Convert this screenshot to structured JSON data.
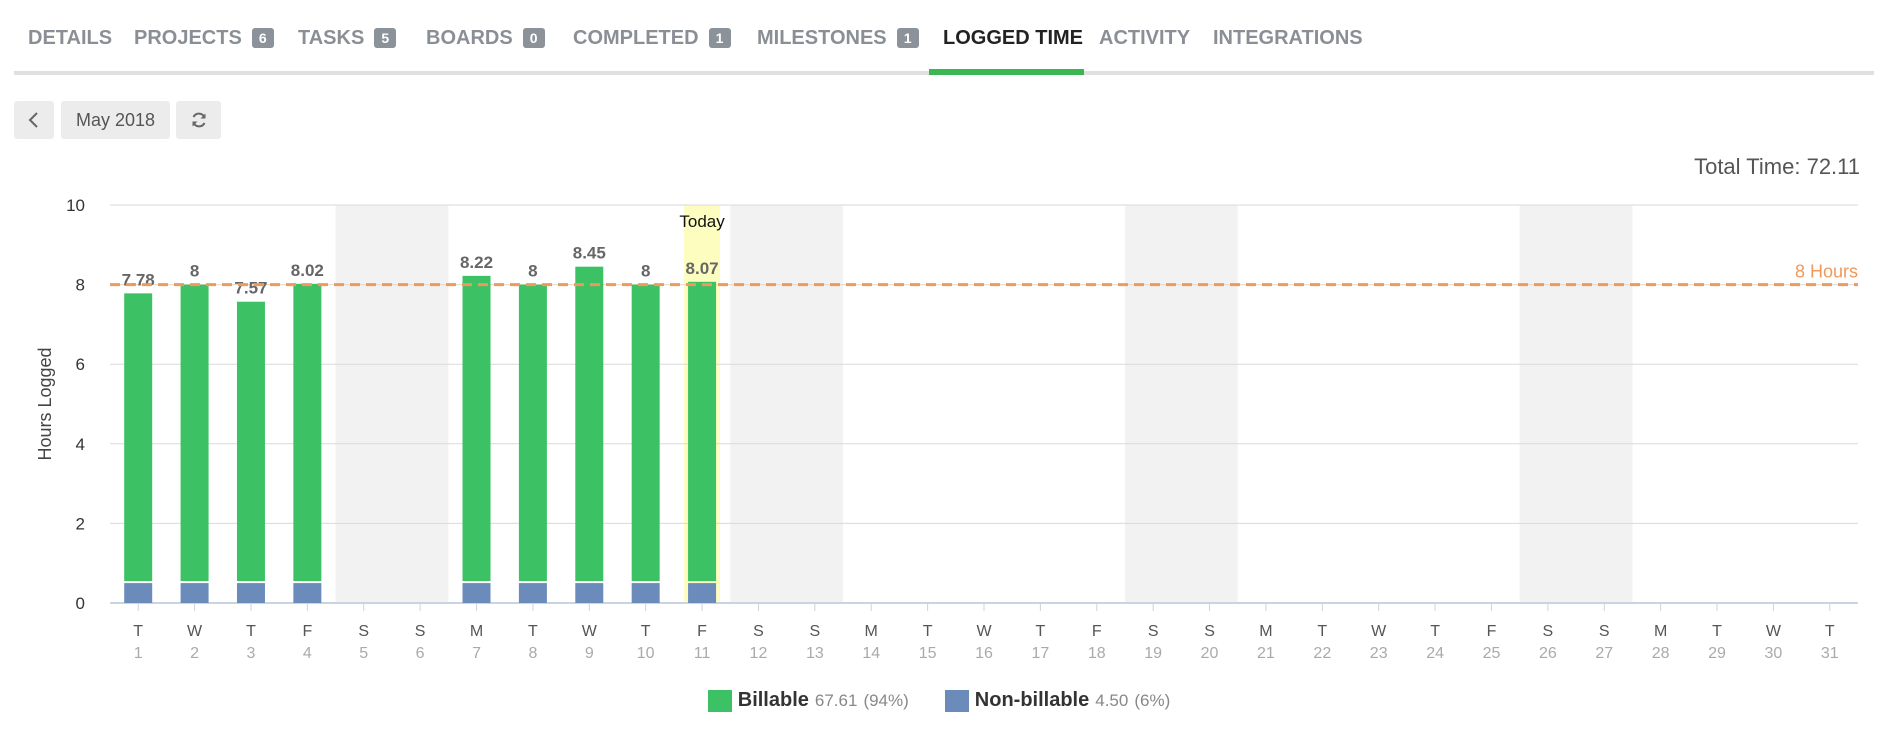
{
  "tabs": [
    {
      "label": "DETAILS",
      "badge": null
    },
    {
      "label": "PROJECTS",
      "badge": "6"
    },
    {
      "label": "TASKS",
      "badge": "5"
    },
    {
      "label": "BOARDS",
      "badge": "0"
    },
    {
      "label": "COMPLETED",
      "badge": "1"
    },
    {
      "label": "MILESTONES",
      "badge": "1"
    },
    {
      "label": "LOGGED TIME",
      "badge": null,
      "active": true
    },
    {
      "label": "ACTIVITY",
      "badge": null
    },
    {
      "label": "INTEGRATIONS",
      "badge": null
    }
  ],
  "toolbar": {
    "prev_icon": "chevron-left-icon",
    "month": "May 2018",
    "refresh_icon": "refresh-icon"
  },
  "total_time": {
    "label": "Total Time:",
    "value": "72.11"
  },
  "colors": {
    "billable": "#3cc264",
    "non_billable": "#6b8cba",
    "reference": "#f0995a",
    "weekend_band": "#f2f2f2",
    "today_band": "#fdfdbf",
    "accent_tab": "#3cb554"
  },
  "chart_data": {
    "type": "bar",
    "stacked": true,
    "ylabel": "Hours Logged",
    "ylim": [
      0,
      10
    ],
    "yticks": [
      0,
      2,
      4,
      6,
      8,
      10
    ],
    "grid": true,
    "reference_line": {
      "value": 8,
      "label": "8 Hours"
    },
    "today_label": "Today",
    "today_index": 10,
    "categories": [
      "1",
      "2",
      "3",
      "4",
      "5",
      "6",
      "7",
      "8",
      "9",
      "10",
      "11",
      "12",
      "13",
      "14",
      "15",
      "16",
      "17",
      "18",
      "19",
      "20",
      "21",
      "22",
      "23",
      "24",
      "25",
      "26",
      "27",
      "28",
      "29",
      "30",
      "31"
    ],
    "weekday_labels": [
      "T",
      "W",
      "T",
      "F",
      "S",
      "S",
      "M",
      "T",
      "W",
      "T",
      "F",
      "S",
      "S",
      "M",
      "T",
      "W",
      "T",
      "F",
      "S",
      "S",
      "M",
      "T",
      "W",
      "T",
      "F",
      "S",
      "S",
      "M",
      "T",
      "W",
      "T"
    ],
    "weekend_indices": [
      4,
      5,
      11,
      12,
      18,
      19,
      25,
      26
    ],
    "totals": [
      "7.78",
      "8",
      "7.57",
      "8.02",
      null,
      null,
      "8.22",
      "8",
      "8.45",
      "8",
      "8.07",
      null,
      null,
      null,
      null,
      null,
      null,
      null,
      null,
      null,
      null,
      null,
      null,
      null,
      null,
      null,
      null,
      null,
      null,
      null,
      null
    ],
    "series": [
      {
        "name": "Non-billable",
        "values": [
          0.5,
          0.5,
          0.5,
          0.5,
          0,
          0,
          0.5,
          0.5,
          0.5,
          0.5,
          0.5,
          0,
          0,
          0,
          0,
          0,
          0,
          0,
          0,
          0,
          0,
          0,
          0,
          0,
          0,
          0,
          0,
          0,
          0,
          0,
          0
        ]
      },
      {
        "name": "Billable",
        "values": [
          7.28,
          7.5,
          7.07,
          7.52,
          0,
          0,
          7.72,
          7.5,
          7.95,
          7.5,
          7.57,
          0,
          0,
          0,
          0,
          0,
          0,
          0,
          0,
          0,
          0,
          0,
          0,
          0,
          0,
          0,
          0,
          0,
          0,
          0,
          0
        ]
      }
    ],
    "legend": [
      {
        "name": "Billable",
        "value": "67.61",
        "pct": "(94%)"
      },
      {
        "name": "Non-billable",
        "value": "4.50",
        "pct": "(6%)"
      }
    ]
  }
}
